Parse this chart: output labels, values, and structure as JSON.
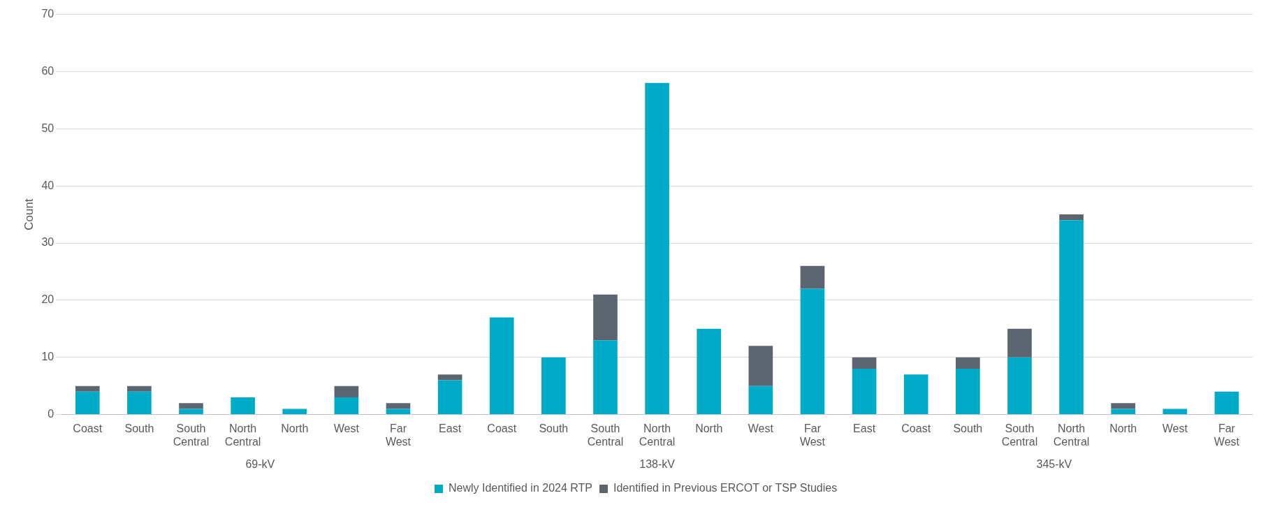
{
  "chart_data": {
    "type": "bar",
    "stacked": true,
    "ylabel": "Count",
    "categories": [
      "Coast",
      "South",
      "South Central",
      "North Central",
      "North",
      "West",
      "Far West",
      "East",
      "Coast",
      "South",
      "South Central",
      "North Central",
      "North",
      "West",
      "Far West",
      "East",
      "Coast",
      "South",
      "South Central",
      "North Central",
      "North",
      "West",
      "Far West"
    ],
    "series": [
      {
        "name": "Newly Identified in 2024 RTP",
        "color": "#00abc8",
        "values": [
          4,
          4,
          1,
          3,
          1,
          3,
          1,
          6,
          17,
          10,
          13,
          58,
          15,
          5,
          22,
          8,
          7,
          8,
          10,
          34,
          1,
          1,
          4
        ]
      },
      {
        "name": "Identified in Previous ERCOT or TSP Studies",
        "color": "#5b6670",
        "values": [
          1,
          1,
          1,
          0,
          0,
          2,
          1,
          1,
          0,
          0,
          8,
          0,
          0,
          7,
          4,
          2,
          0,
          2,
          5,
          1,
          1,
          0,
          0
        ]
      }
    ],
    "ylim": [
      0,
      70
    ],
    "yticks": [
      0,
      10,
      20,
      30,
      40,
      50,
      60,
      70
    ],
    "grid": "y",
    "legend": "bottom",
    "annotations": [
      "69-kV",
      "138-kV",
      "345-kV"
    ]
  }
}
